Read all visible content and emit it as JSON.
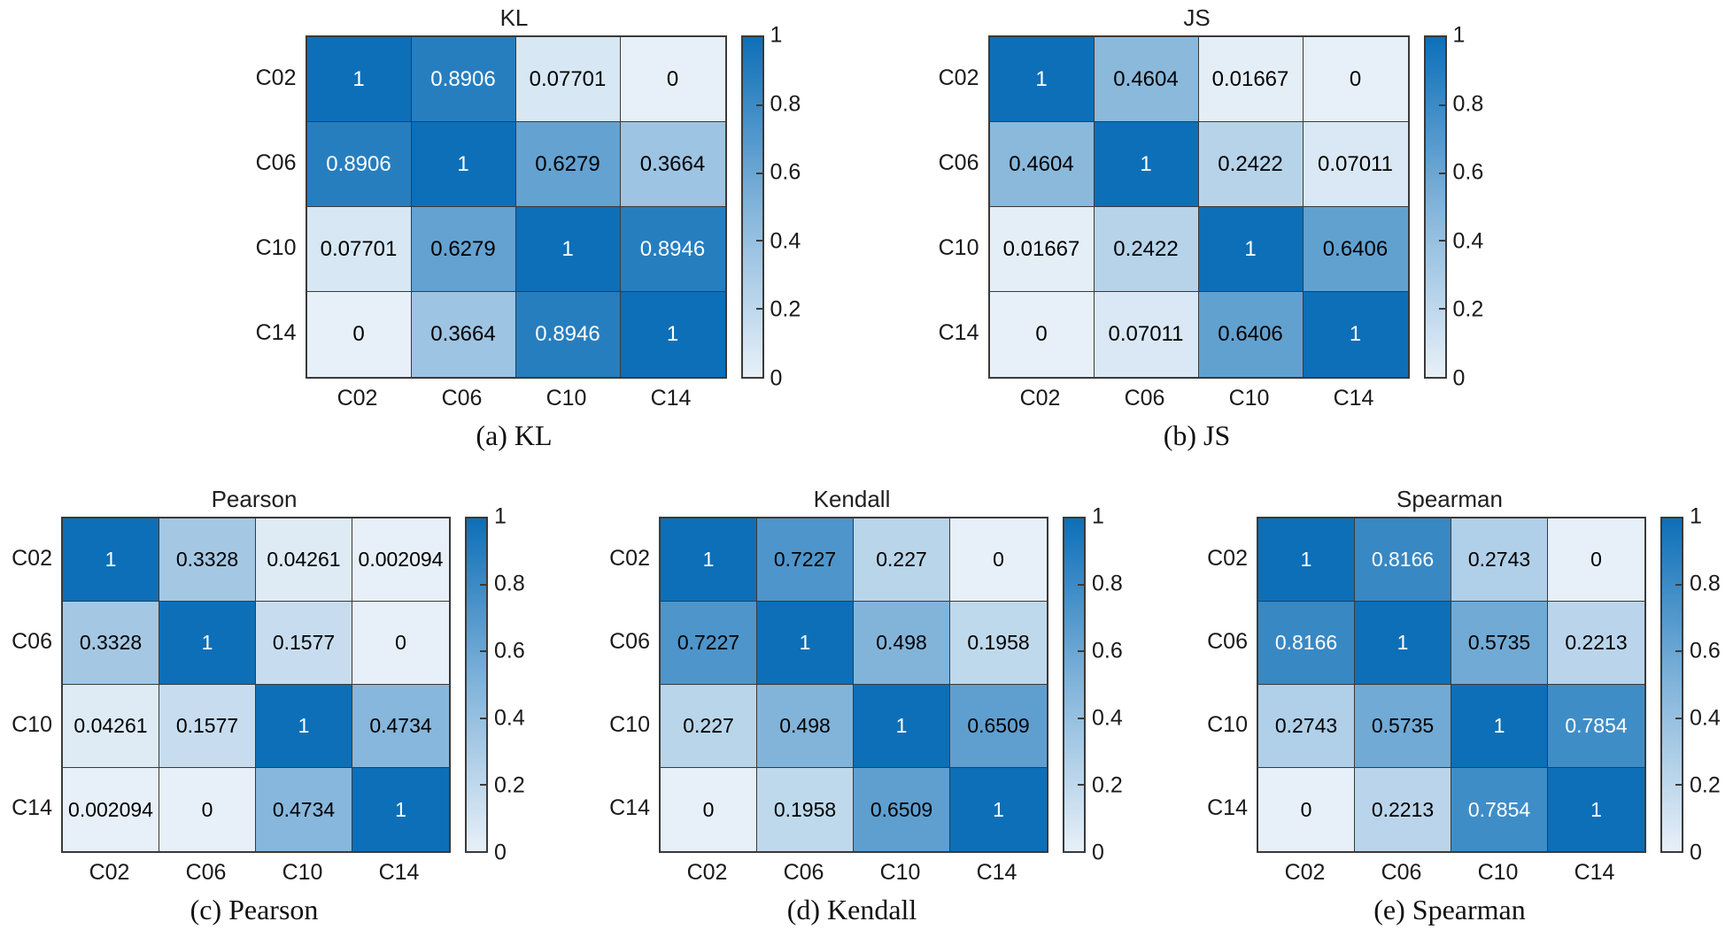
{
  "figure_name": "similarity-matrices",
  "colors": {
    "colormap_low": "#e7f0f8",
    "colormap_mid": "#82b4da",
    "colormap_high": "#0d6fb8",
    "grid_line": "#3a3a3a",
    "cell_text_dark": "#000000",
    "cell_text_light": "#ffffff"
  },
  "colorbar": {
    "ticks": [
      "1",
      "0.8",
      "0.6",
      "0.4",
      "0.2",
      "0"
    ],
    "tick_positions_pct": [
      0,
      20,
      40,
      60,
      80,
      100
    ],
    "notch_positions_pct": [
      20,
      40,
      60,
      80
    ],
    "min": 0,
    "max": 1
  },
  "white_text_threshold": 0.75,
  "chart_data": [
    {
      "type": "heatmap",
      "title": "KL",
      "caption": "(a) KL",
      "row": "top",
      "x_categories": [
        "C02",
        "C06",
        "C10",
        "C14"
      ],
      "y_categories": [
        "C02",
        "C06",
        "C10",
        "C14"
      ],
      "vmin": 0,
      "vmax": 1,
      "legend_position": "right-colorbar",
      "values": [
        [
          1,
          0.8906,
          0.07701,
          0
        ],
        [
          0.8906,
          1,
          0.6279,
          0.3664
        ],
        [
          0.07701,
          0.6279,
          1,
          0.8946
        ],
        [
          0,
          0.3664,
          0.8946,
          1
        ]
      ]
    },
    {
      "type": "heatmap",
      "title": "JS",
      "caption": "(b) JS",
      "row": "top",
      "x_categories": [
        "C02",
        "C06",
        "C10",
        "C14"
      ],
      "y_categories": [
        "C02",
        "C06",
        "C10",
        "C14"
      ],
      "vmin": 0,
      "vmax": 1,
      "legend_position": "right-colorbar",
      "values": [
        [
          1,
          0.4604,
          0.01667,
          0
        ],
        [
          0.4604,
          1,
          0.2422,
          0.07011
        ],
        [
          0.01667,
          0.2422,
          1,
          0.6406
        ],
        [
          0,
          0.07011,
          0.6406,
          1
        ]
      ]
    },
    {
      "type": "heatmap",
      "title": "Pearson",
      "caption": "(c) Pearson",
      "row": "bottom",
      "x_categories": [
        "C02",
        "C06",
        "C10",
        "C14"
      ],
      "y_categories": [
        "C02",
        "C06",
        "C10",
        "C14"
      ],
      "vmin": 0,
      "vmax": 1,
      "legend_position": "right-colorbar",
      "values": [
        [
          1,
          0.3328,
          0.04261,
          0.002094
        ],
        [
          0.3328,
          1,
          0.1577,
          0
        ],
        [
          0.04261,
          0.1577,
          1,
          0.4734
        ],
        [
          0.002094,
          0,
          0.4734,
          1
        ]
      ]
    },
    {
      "type": "heatmap",
      "title": "Kendall",
      "caption": "(d) Kendall",
      "row": "bottom",
      "x_categories": [
        "C02",
        "C06",
        "C10",
        "C14"
      ],
      "y_categories": [
        "C02",
        "C06",
        "C10",
        "C14"
      ],
      "vmin": 0,
      "vmax": 1,
      "legend_position": "right-colorbar",
      "values": [
        [
          1,
          0.7227,
          0.227,
          0
        ],
        [
          0.7227,
          1,
          0.498,
          0.1958
        ],
        [
          0.227,
          0.498,
          1,
          0.6509
        ],
        [
          0,
          0.1958,
          0.6509,
          1
        ]
      ]
    },
    {
      "type": "heatmap",
      "title": "Spearman",
      "caption": "(e) Spearman",
      "row": "bottom",
      "x_categories": [
        "C02",
        "C06",
        "C10",
        "C14"
      ],
      "y_categories": [
        "C02",
        "C06",
        "C10",
        "C14"
      ],
      "vmin": 0,
      "vmax": 1,
      "legend_position": "right-colorbar",
      "values": [
        [
          1,
          0.8166,
          0.2743,
          0
        ],
        [
          0.8166,
          1,
          0.5735,
          0.2213
        ],
        [
          0.2743,
          0.5735,
          1,
          0.7854
        ],
        [
          0,
          0.2213,
          0.7854,
          1
        ]
      ]
    }
  ]
}
